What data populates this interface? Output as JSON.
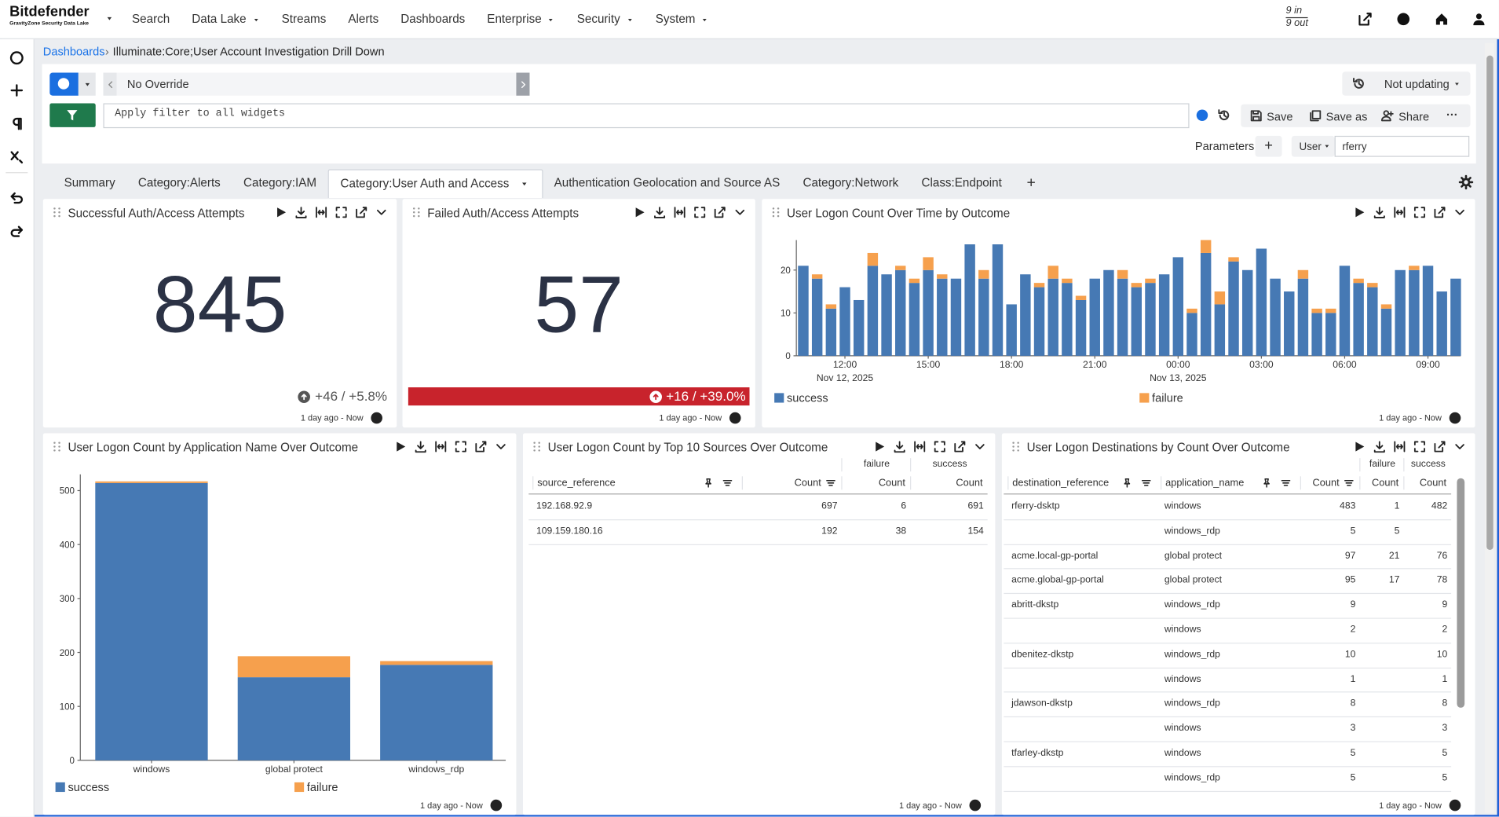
{
  "nav": {
    "brand": "Bitdefender",
    "brand_sub": "GravityZone Security Data Lake",
    "items": [
      {
        "label": "Search"
      },
      {
        "label": "Data Lake",
        "menu": true
      },
      {
        "label": "Streams"
      },
      {
        "label": "Alerts"
      },
      {
        "label": "Dashboards"
      },
      {
        "label": "Enterprise",
        "menu": true
      },
      {
        "label": "Security",
        "menu": true
      },
      {
        "label": "System",
        "menu": true
      }
    ],
    "traffic_in": "9 in",
    "traffic_out": "9 out"
  },
  "breadcrumb": {
    "root": "Dashboards",
    "page": "Illuminate:Core;User Account Investigation Drill Down"
  },
  "toolbar": {
    "time_override": "No Override",
    "refresh": "Not updating",
    "filter_placeholder": "Apply filter to all widgets",
    "save": "Save",
    "save_as": "Save as",
    "share": "Share",
    "parameters": "Parameters",
    "param_name": "User",
    "param_value": "rferry"
  },
  "tabs": [
    {
      "label": "Summary"
    },
    {
      "label": "Category:Alerts"
    },
    {
      "label": "Category:IAM"
    },
    {
      "label": "Category:User Auth and Access",
      "active": true
    },
    {
      "label": "Authentication Geolocation and Source AS"
    },
    {
      "label": "Category:Network"
    },
    {
      "label": "Class:Endpoint"
    }
  ],
  "stats": [
    {
      "title": "Successful Auth/Access Attempts",
      "value": 845,
      "change": "+46 / +5.8%",
      "time_range": "1 day ago - Now"
    },
    {
      "title": "Failed Auth/Access Attempts",
      "value": 57,
      "change": "+16 / +39.0%",
      "highlight": "#c8232c",
      "time_range": "1 day ago - Now"
    }
  ],
  "chart_data": [
    {
      "type": "bar",
      "stacked": true,
      "title": "User Logon Count Over Time by Outcome",
      "categories": [
        null,
        null,
        null,
        "12:00",
        null,
        null,
        null,
        null,
        null,
        "15:00",
        null,
        null,
        null,
        null,
        null,
        "18:00",
        null,
        null,
        null,
        null,
        null,
        "21:00",
        null,
        null,
        null,
        null,
        null,
        "00:00",
        null,
        null,
        null,
        null,
        null,
        "03:00",
        null,
        null,
        null,
        null,
        null,
        "06:00",
        null,
        null,
        null,
        null,
        null,
        "09:00",
        null,
        null
      ],
      "date_labels": [
        {
          "category": "12:00",
          "label": "Nov 12, 2025"
        },
        {
          "category": "00:00",
          "label": "Nov 13, 2025"
        }
      ],
      "series": [
        {
          "name": "success",
          "color": "#4679b4",
          "values": [
            21,
            18,
            11,
            16,
            13,
            21,
            19,
            20,
            17,
            20,
            18,
            18,
            26,
            18,
            26,
            12,
            19,
            16,
            18,
            17,
            13,
            18,
            20,
            18,
            16,
            17,
            19,
            23,
            10,
            24,
            12,
            22,
            20,
            25,
            18,
            15,
            18,
            10,
            10,
            21,
            17,
            16,
            11,
            20,
            20,
            21,
            15,
            18
          ]
        },
        {
          "name": "failure",
          "color": "#f6a04d",
          "values": [
            0,
            1,
            1,
            0,
            0,
            3,
            0,
            1,
            1,
            3,
            1,
            0,
            0,
            2,
            0,
            0,
            0,
            1,
            3,
            1,
            1,
            0,
            0,
            2,
            1,
            1,
            0,
            0,
            1,
            3,
            3,
            1,
            0,
            0,
            0,
            0,
            2,
            1,
            1,
            0,
            1,
            1,
            1,
            0,
            1,
            0,
            0,
            0
          ]
        }
      ],
      "ylim": [
        0,
        27
      ],
      "yticks": [
        0,
        10,
        20
      ],
      "time_range": "1 day ago - Now"
    },
    {
      "type": "bar",
      "stacked": true,
      "title": "User Logon Count by Application Name Over Outcome",
      "categories": [
        "windows",
        "global protect",
        "windows_rdp"
      ],
      "series": [
        {
          "name": "success",
          "color": "#4679b4",
          "values": [
            514,
            154,
            177
          ]
        },
        {
          "name": "failure",
          "color": "#f6a04d",
          "values": [
            3,
            39,
            7
          ]
        }
      ],
      "ylim": [
        0,
        530
      ],
      "yticks": [
        0,
        100,
        200,
        300,
        400,
        500
      ],
      "time_range": "1 day ago - Now"
    }
  ],
  "tables": [
    {
      "title": "User Logon Count by Top 10 Sources Over Outcome",
      "group_headers": [
        "failure",
        "success"
      ],
      "columns": [
        "source_reference",
        "Count",
        "Count",
        "Count"
      ],
      "rows": [
        [
          "192.168.92.9",
          697,
          6,
          691
        ],
        [
          "109.159.180.16",
          192,
          38,
          154
        ]
      ],
      "time_range": "1 day ago - Now"
    },
    {
      "title": "User Logon Destinations by Count Over Outcome",
      "group_headers": [
        "failure",
        "success"
      ],
      "columns": [
        "destination_reference",
        "application_name",
        "Count",
        "Count",
        "Count"
      ],
      "rows": [
        [
          "rferry-dsktp",
          "windows",
          483,
          1,
          482
        ],
        [
          null,
          "windows_rdp",
          5,
          5,
          null
        ],
        [
          "acme.local-gp-portal",
          "global protect",
          97,
          21,
          76
        ],
        [
          "acme.global-gp-portal",
          "global protect",
          95,
          17,
          78
        ],
        [
          "abritt-dkstp",
          "windows_rdp",
          9,
          null,
          9
        ],
        [
          null,
          "windows",
          2,
          null,
          2
        ],
        [
          "dbenitez-dkstp",
          "windows_rdp",
          10,
          null,
          10
        ],
        [
          null,
          "windows",
          1,
          null,
          1
        ],
        [
          "jdawson-dkstp",
          "windows_rdp",
          8,
          null,
          8
        ],
        [
          null,
          "windows",
          3,
          null,
          3
        ],
        [
          "tfarley-dkstp",
          "windows",
          5,
          null,
          5
        ],
        [
          null,
          "windows_rdp",
          5,
          null,
          5
        ]
      ],
      "time_range": "1 day ago - Now"
    }
  ]
}
